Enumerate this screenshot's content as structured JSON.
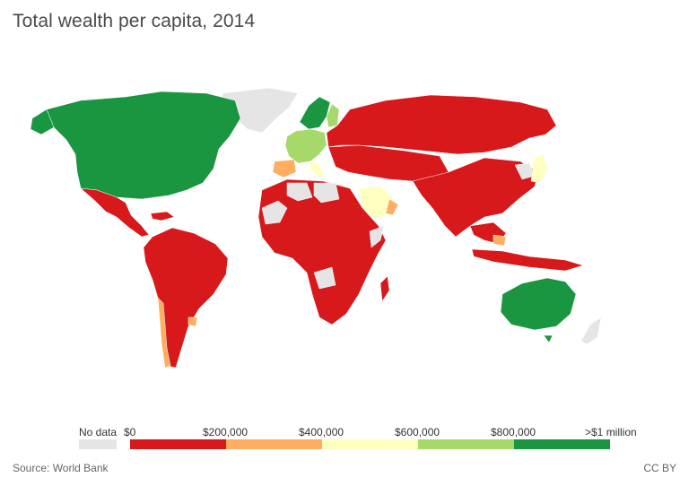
{
  "title": "Total wealth per capita, 2014",
  "legend": {
    "no_data_label": "No data",
    "no_data_color": "#e5e5e5",
    "tick_labels": [
      "$0",
      "$200,000",
      "$400,000",
      "$600,000",
      "$800,000",
      ">$1 million"
    ],
    "bins": [
      {
        "color": "#d7191c",
        "range": "$0 – $200,000"
      },
      {
        "color": "#fdae61",
        "range": "$200,000 – $400,000"
      },
      {
        "color": "#ffffbf",
        "range": "$400,000 – $600,000"
      },
      {
        "color": "#a6d96a",
        "range": "$600,000 – $800,000"
      },
      {
        "color": "#1a9641",
        "range": "$800,000 – >$1 million"
      }
    ]
  },
  "source": "Source: World Bank",
  "license": "CC BY"
}
